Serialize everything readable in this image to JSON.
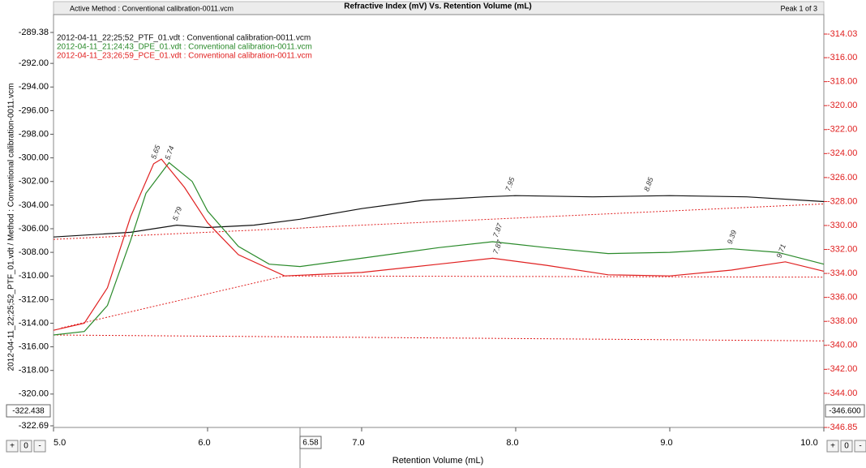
{
  "window": {
    "active_method": "Active Method : Conventional calibration-0011.vcm",
    "peak_indicator": "Peak 1 of 3",
    "left_controls": [
      "+",
      "0",
      "-"
    ],
    "right_controls": [
      "+",
      "0",
      "-"
    ],
    "cursor_x": "6.58",
    "left_cursor": "-322.438",
    "right_cursor": "-346.600"
  },
  "chart_data": {
    "type": "line",
    "title": "Refractive Index (mV) Vs. Retention Volume (mL)",
    "x_label": "Retention Volume (mL)",
    "y_label": "2012-04-11_22;25;52_PTF_01.vdt / Method : Conventional calibration-0011.vcm",
    "xlim": [
      5,
      10
    ],
    "xticks": [
      {
        "value": 5,
        "label": "5.0"
      },
      {
        "value": 6,
        "label": "6.0"
      },
      {
        "value": 7,
        "label": "7.0"
      },
      {
        "value": 8,
        "label": "8.0"
      },
      {
        "value": 9,
        "label": "9.0"
      },
      {
        "value": 10,
        "label": "10.0"
      }
    ],
    "ylim": [
      -322.69,
      -289.38
    ],
    "yticks": [
      -289.38,
      {
        "value": -292,
        "label": "-292.00"
      },
      {
        "value": -294,
        "label": "-294.00"
      },
      {
        "value": -296,
        "label": "-296.00"
      },
      {
        "value": -298,
        "label": "-298.00"
      },
      {
        "value": -300,
        "label": "-300.00"
      },
      {
        "value": -302,
        "label": "-302.00"
      },
      {
        "value": -304,
        "label": "-304.00"
      },
      {
        "value": -306,
        "label": "-306.00"
      },
      {
        "value": -308,
        "label": "-308.00"
      },
      {
        "value": -310,
        "label": "-310.00"
      },
      {
        "value": -312,
        "label": "-312.00"
      },
      {
        "value": -314,
        "label": "-314.00"
      },
      {
        "value": -316,
        "label": "-316.00"
      },
      {
        "value": -318,
        "label": "-318.00"
      },
      {
        "value": -320,
        "label": "-320.00"
      },
      -322.69
    ],
    "y2lim": [
      -346.85,
      -314.03
    ],
    "y2ticks": [
      -314.03,
      {
        "value": -316,
        "label": "-316.00"
      },
      {
        "value": -318,
        "label": "-318.00"
      },
      {
        "value": -320,
        "label": "-320.00"
      },
      {
        "value": -322,
        "label": "-322.00"
      },
      {
        "value": -324,
        "label": "-324.00"
      },
      {
        "value": -326,
        "label": "-326.00"
      },
      {
        "value": -328,
        "label": "-328.00"
      },
      {
        "value": -330,
        "label": "-330.00"
      },
      {
        "value": -332,
        "label": "-332.00"
      },
      {
        "value": -334,
        "label": "-334.00"
      },
      {
        "value": -336,
        "label": "-336.00"
      },
      {
        "value": -338,
        "label": "-338.00"
      },
      {
        "value": -340,
        "label": "-340.00"
      },
      {
        "value": -342,
        "label": "-342.00"
      },
      {
        "value": -344,
        "label": "-344.00"
      },
      -346.85
    ],
    "y2color": "#e02020",
    "series": [
      {
        "name": "2012-04-11_22;25;52_PTF_01.vdt : Conventional calibration-0011.vcm",
        "color": "#111111",
        "x": [
          5.0,
          5.5,
          5.8,
          6.0,
          6.3,
          6.6,
          7.0,
          7.4,
          7.8,
          8.0,
          8.5,
          9.0,
          9.5,
          10.0
        ],
        "values": [
          -306.7,
          -306.3,
          -305.7,
          -305.9,
          -305.7,
          -305.2,
          -304.3,
          -303.6,
          -303.3,
          -303.2,
          -303.3,
          -303.2,
          -303.3,
          -303.7
        ],
        "peaks": [
          5.79,
          7.95,
          8.85
        ]
      },
      {
        "name": "2012-04-11_21;24;43_DPE_01.vdt : Conventional calibration-0011.vcm",
        "color": "#2a8a2a",
        "x": [
          5.0,
          5.2,
          5.35,
          5.5,
          5.6,
          5.75,
          5.9,
          6.0,
          6.2,
          6.4,
          6.6,
          7.0,
          7.5,
          7.85,
          8.2,
          8.6,
          9.0,
          9.4,
          9.7,
          10.0
        ],
        "values": [
          -315.0,
          -314.7,
          -312.5,
          -307.0,
          -303.0,
          -300.4,
          -302.0,
          -304.5,
          -307.5,
          -309.0,
          -309.2,
          -308.5,
          -307.6,
          -307.1,
          -307.6,
          -308.1,
          -308.0,
          -307.7,
          -308.0,
          -309.0
        ],
        "peaks": [
          5.74,
          7.87,
          9.39
        ]
      },
      {
        "name": "2012-04-11_23;26;59_PCE_01.vdt : Conventional calibration-0011.vcm",
        "color": "#e02020",
        "x": [
          5.0,
          5.2,
          5.35,
          5.5,
          5.65,
          5.7,
          5.85,
          6.0,
          6.2,
          6.5,
          7.0,
          7.5,
          7.85,
          8.2,
          8.6,
          9.0,
          9.4,
          9.75,
          10.0
        ],
        "values": [
          -314.6,
          -314.0,
          -311.0,
          -305.0,
          -300.5,
          -300.1,
          -302.5,
          -305.5,
          -308.2,
          -310.0,
          -309.7,
          -309.0,
          -308.5,
          -309.1,
          -309.9,
          -310.0,
          -309.5,
          -308.8,
          -309.6
        ],
        "peaks": [
          5.65,
          7.87,
          9.71
        ]
      }
    ],
    "baselines": {
      "color": "#e02020",
      "lines": [
        {
          "x": [
            5.0,
            10.0
          ],
          "values": [
            -306.9,
            -303.9
          ]
        },
        {
          "x": [
            5.05,
            6.5,
            10.0
          ],
          "values": [
            -314.4,
            -310.0,
            -310.1
          ]
        },
        {
          "x": [
            5.0,
            10.0
          ],
          "values": [
            -315.0,
            -315.5
          ]
        }
      ]
    }
  }
}
